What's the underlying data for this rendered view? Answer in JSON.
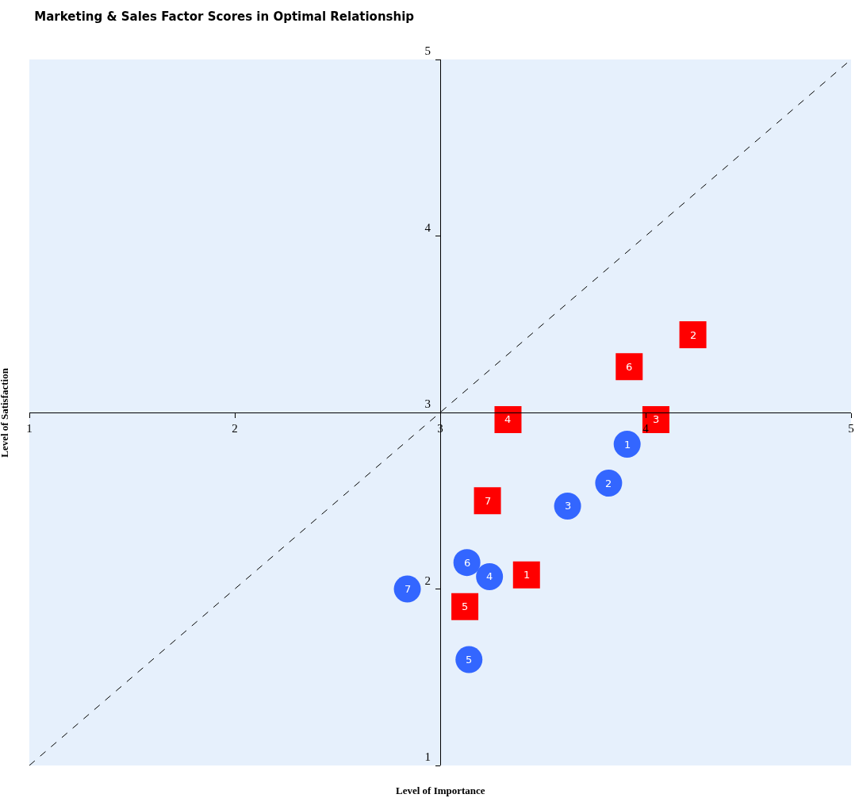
{
  "chart_data": {
    "type": "scatter",
    "title": "Marketing & Sales Factor Scores in Optimal Relationship",
    "xlabel": "Level of Importance",
    "ylabel": "Level of Satisfaction",
    "xlim": [
      1,
      5
    ],
    "ylim": [
      1,
      5
    ],
    "xticks": [
      1,
      2,
      3,
      4,
      5
    ],
    "yticks": [
      1,
      2,
      3,
      4,
      5
    ],
    "series": [
      {
        "type": "line",
        "color": "#000000",
        "line_style": "dashed",
        "marker": "none",
        "x": [
          1,
          5
        ],
        "values": [
          1,
          5
        ]
      },
      {
        "color": "#3366ff",
        "marker": "circle",
        "x": [
          3.91,
          3.82,
          3.62,
          3.24,
          3.14,
          3.13,
          2.84
        ],
        "values": [
          2.82,
          2.6,
          2.47,
          2.07,
          1.6,
          2.15,
          2.0
        ]
      },
      {
        "color": "#ff0000",
        "marker": "square",
        "x": [
          3.42,
          4.23,
          4.05,
          3.33,
          3.12,
          3.92,
          3.23
        ],
        "values": [
          2.08,
          3.44,
          2.96,
          2.96,
          1.9,
          3.26,
          2.5
        ]
      }
    ],
    "annotations": [
      {
        "text": "1",
        "x": 3.91,
        "y": 2.82
      },
      {
        "text": "2",
        "x": 3.82,
        "y": 2.6
      },
      {
        "text": "3",
        "x": 3.62,
        "y": 2.47
      },
      {
        "text": "4",
        "x": 3.24,
        "y": 2.07
      },
      {
        "text": "5",
        "x": 3.14,
        "y": 1.6
      },
      {
        "text": "6",
        "x": 3.13,
        "y": 2.15
      },
      {
        "text": "7",
        "x": 2.84,
        "y": 2.0
      },
      {
        "text": "1",
        "x": 3.42,
        "y": 2.08
      },
      {
        "text": "2",
        "x": 4.23,
        "y": 3.44
      },
      {
        "text": "3",
        "x": 4.05,
        "y": 2.96
      },
      {
        "text": "4",
        "x": 3.33,
        "y": 2.96
      },
      {
        "text": "5",
        "x": 3.12,
        "y": 1.9
      },
      {
        "text": "6",
        "x": 3.92,
        "y": 3.26
      },
      {
        "text": "7",
        "x": 3.23,
        "y": 2.5
      }
    ]
  }
}
